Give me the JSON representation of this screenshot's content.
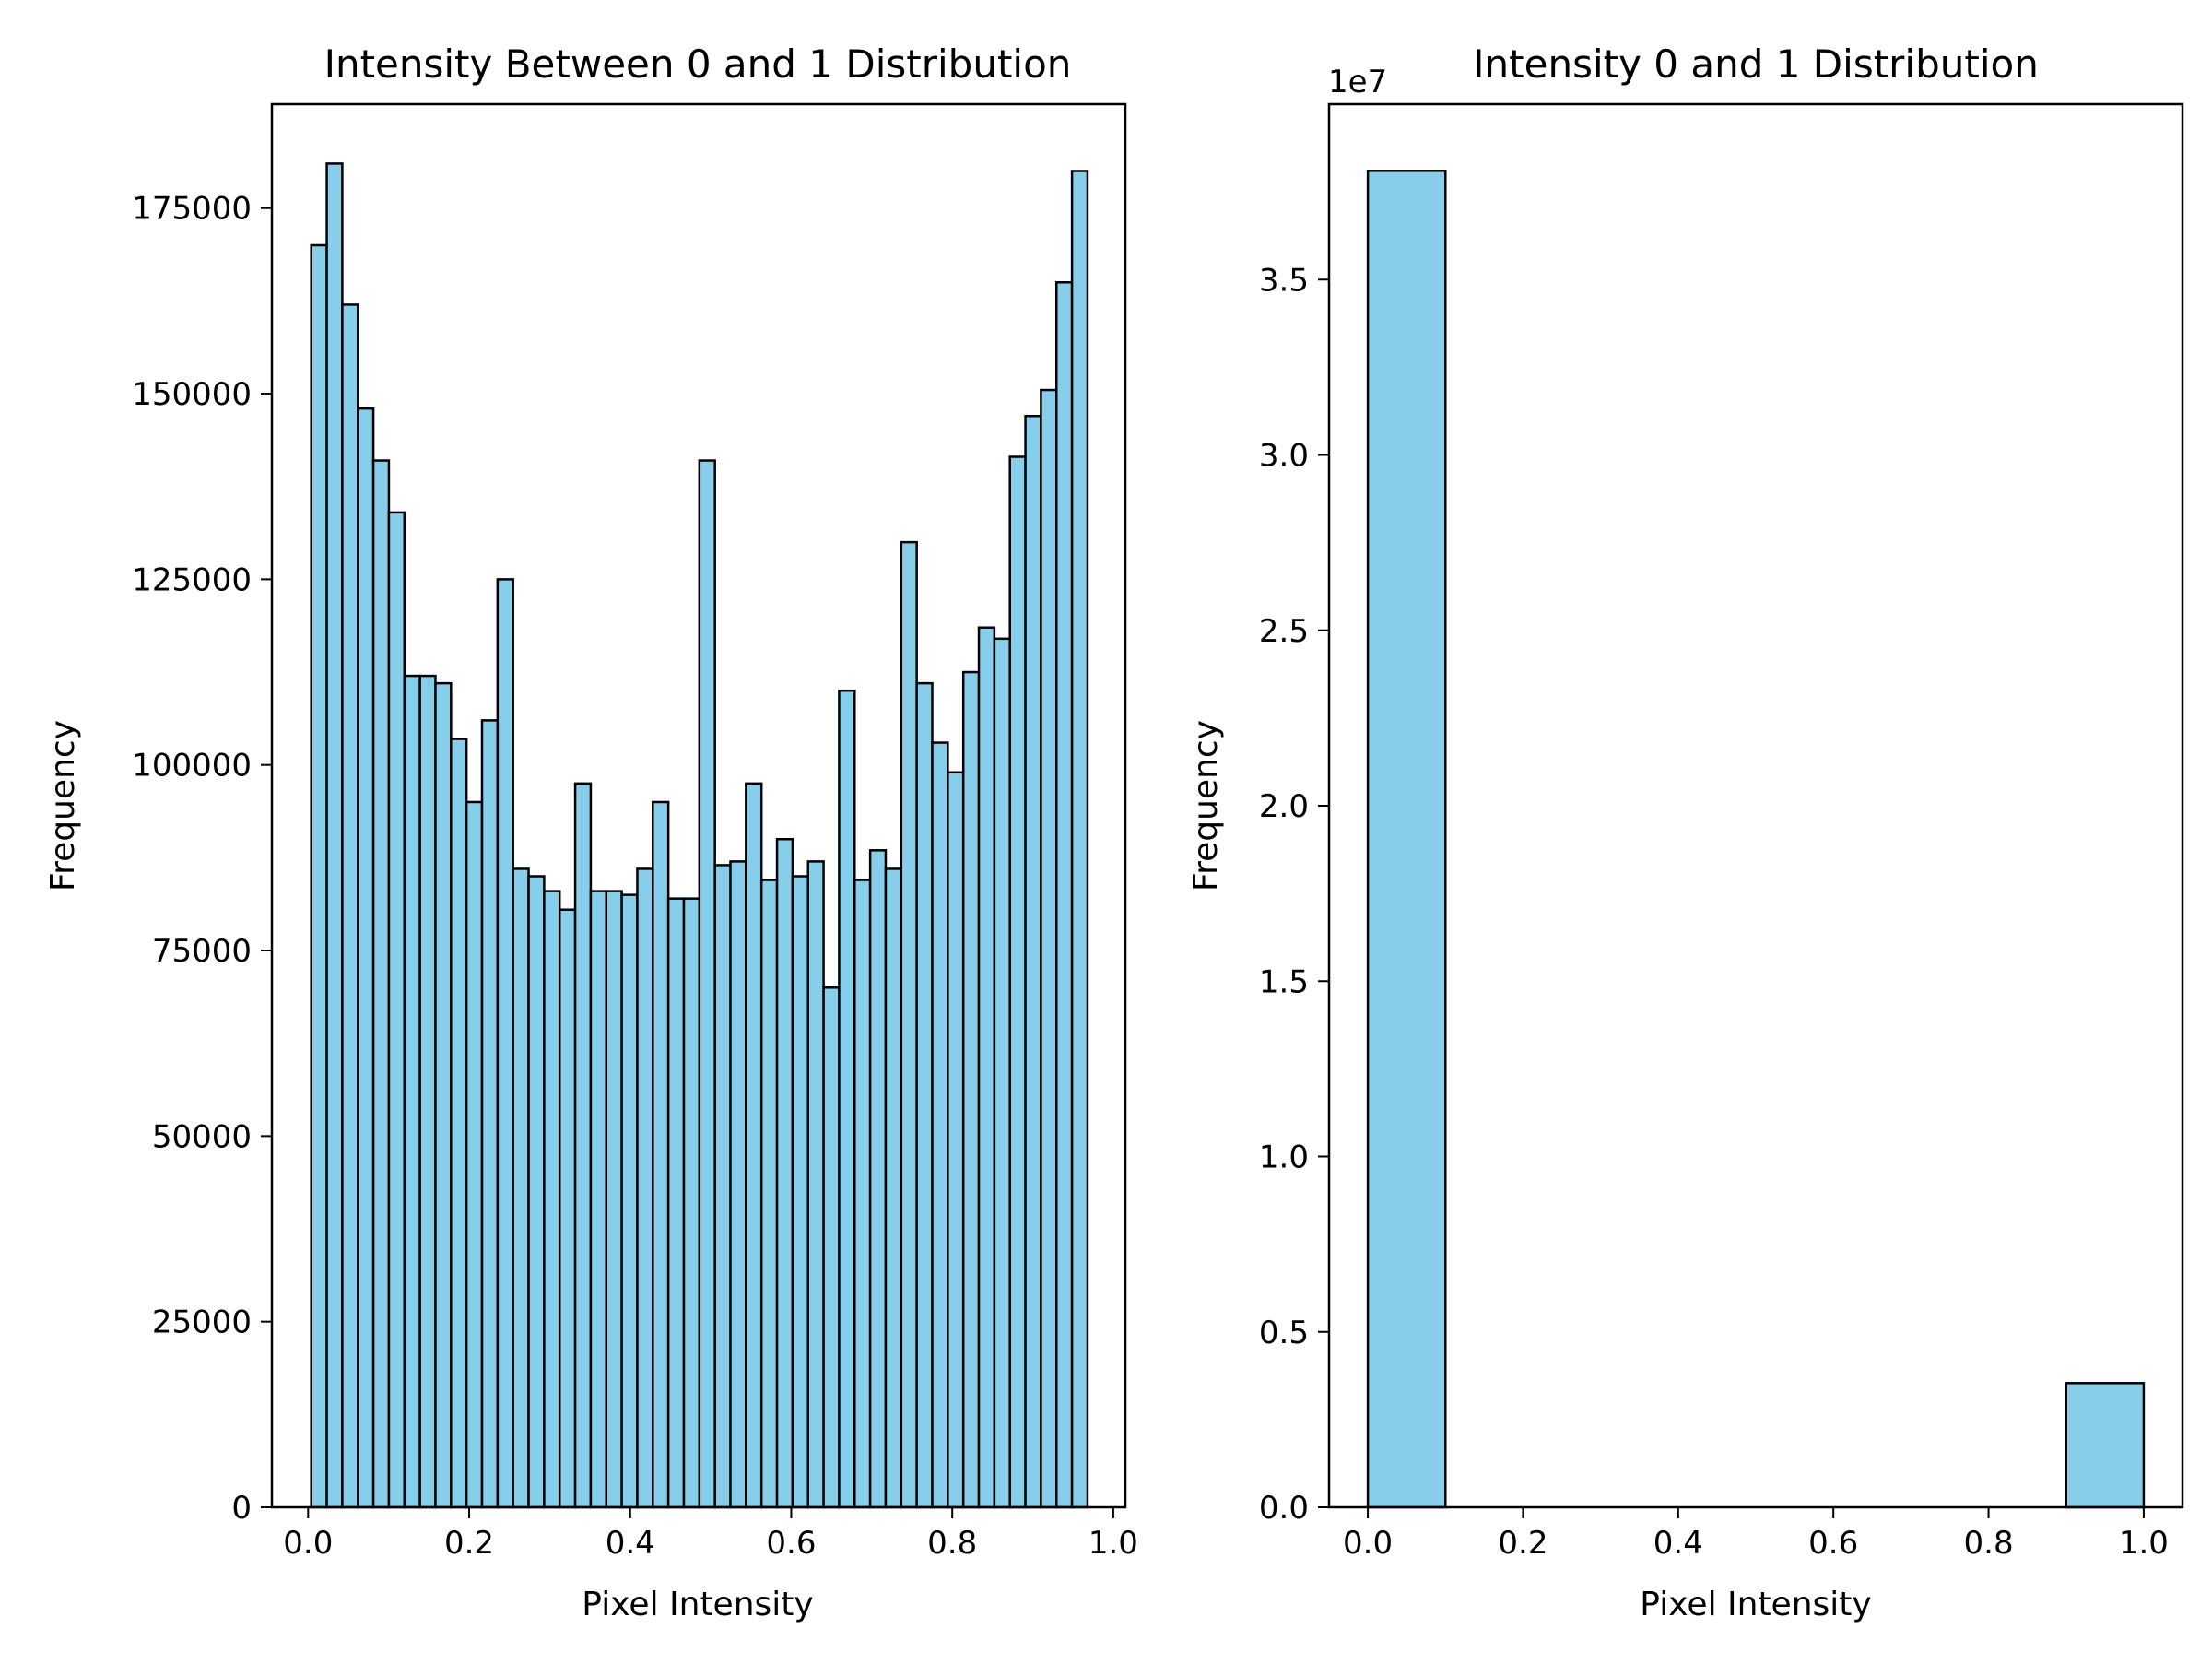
{
  "figure": {
    "background": "#ffffff"
  },
  "chart_data": [
    {
      "type": "bar",
      "title": "Intensity Between 0 and 1 Distribution",
      "xlabel": "Pixel Intensity",
      "ylabel": "Frequency",
      "xlim": [
        -0.045,
        1.015
      ],
      "ylim": [
        0,
        189000
      ],
      "xticks": [
        0.0,
        0.2,
        0.4,
        0.6,
        0.8,
        1.0
      ],
      "xtick_labels": [
        "0.0",
        "0.2",
        "0.4",
        "0.6",
        "0.8",
        "1.0"
      ],
      "yticks": [
        0,
        25000,
        50000,
        75000,
        100000,
        125000,
        150000,
        175000
      ],
      "ytick_labels": [
        "0",
        "25000",
        "50000",
        "75000",
        "100000",
        "125000",
        "150000",
        "175000"
      ],
      "bin_start": 0.0039,
      "bin_width": 0.019282,
      "values": [
        170000,
        181000,
        162000,
        148000,
        141000,
        134000,
        112000,
        112000,
        111000,
        103500,
        95000,
        106000,
        125000,
        86000,
        85000,
        83000,
        80500,
        97500,
        83000,
        83000,
        82500,
        86000,
        95000,
        82000,
        82000,
        141000,
        86500,
        87000,
        97500,
        84500,
        90000,
        85000,
        87000,
        70000,
        110000,
        84500,
        88500,
        86000,
        130000,
        111000,
        103000,
        99000,
        112500,
        118500,
        117000,
        141500,
        147000,
        150500,
        165000,
        180000
      ],
      "bar_color": "#87ceeb",
      "edge_color": "#000000",
      "grid": false
    },
    {
      "type": "bar",
      "title": "Intensity 0 and 1 Distribution",
      "xlabel": "Pixel Intensity",
      "ylabel": "Frequency",
      "offset_label": "1e7",
      "xlim": [
        -0.05,
        1.05
      ],
      "ylim": [
        0,
        4.0
      ],
      "xticks": [
        0.0,
        0.2,
        0.4,
        0.6,
        0.8,
        1.0
      ],
      "xtick_labels": [
        "0.0",
        "0.2",
        "0.4",
        "0.6",
        "0.8",
        "1.0"
      ],
      "yticks": [
        0.0,
        0.5,
        1.0,
        1.5,
        2.0,
        2.5,
        3.0,
        3.5
      ],
      "ytick_labels": [
        "0.0",
        "0.5",
        "1.0",
        "1.5",
        "2.0",
        "2.5",
        "3.0",
        "3.5"
      ],
      "bin_start": 0.0,
      "bin_width": 0.1,
      "values": [
        3.81,
        0,
        0,
        0,
        0,
        0,
        0,
        0,
        0,
        0.354
      ],
      "bar_color": "#87ceeb",
      "edge_color": "#000000",
      "grid": false
    }
  ]
}
